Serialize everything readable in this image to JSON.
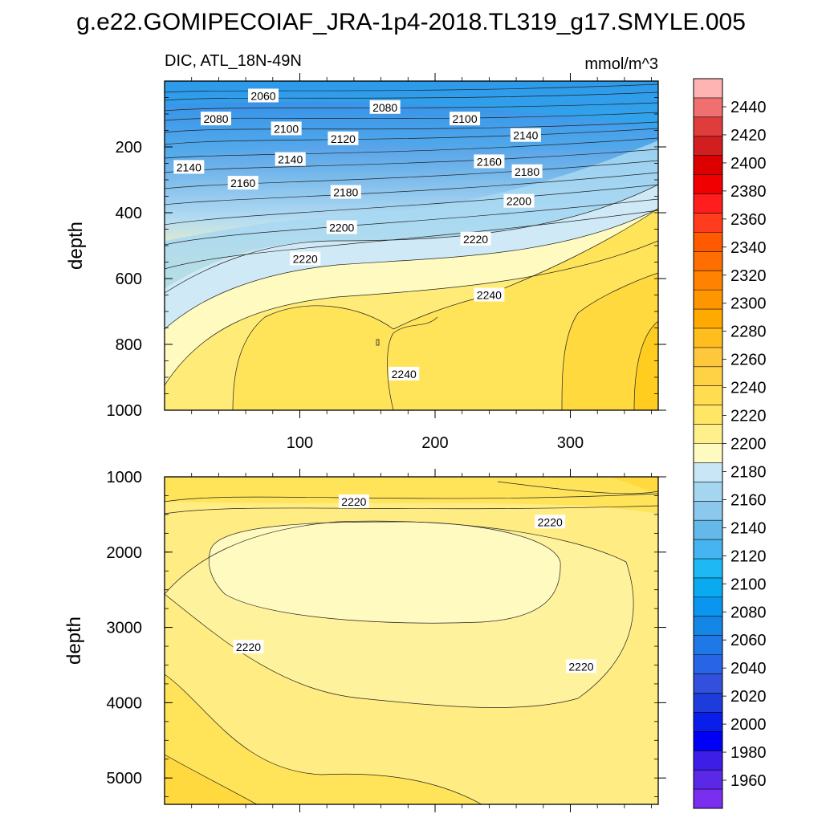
{
  "figure": {
    "title": "g.e22.GOMIPECOIAF_JRA-1p4-2018.TL319_g17.SMYLE.005",
    "left_subtitle": "DIC, ATL_18N-49N",
    "right_subtitle": "mmol/m^3"
  },
  "chart_data": [
    {
      "type": "contour",
      "panel": "upper",
      "variable": "DIC",
      "region": "ATL_18N-49N",
      "units": "mmol/m^3",
      "ylabel": "depth",
      "xlabel": "",
      "xlim": [
        0,
        365
      ],
      "ylim": [
        0,
        1000
      ],
      "y_inverted": true,
      "x_ticks": [
        100,
        200,
        300
      ],
      "x_tick_labels": [
        "100",
        "200",
        "300"
      ],
      "y_ticks": [
        200,
        400,
        600,
        800,
        1000
      ],
      "y_tick_labels": [
        "200",
        "400",
        "600",
        "800",
        "1000"
      ],
      "contour_labels": [
        {
          "text": "2060",
          "x": 73,
          "y": 45
        },
        {
          "text": "2080",
          "x": 38,
          "y": 115
        },
        {
          "text": "2080",
          "x": 163,
          "y": 80
        },
        {
          "text": "2100",
          "x": 90,
          "y": 145
        },
        {
          "text": "2100",
          "x": 222,
          "y": 115
        },
        {
          "text": "2120",
          "x": 132,
          "y": 175
        },
        {
          "text": "2140",
          "x": 18,
          "y": 262
        },
        {
          "text": "2140",
          "x": 93,
          "y": 238
        },
        {
          "text": "2140",
          "x": 267,
          "y": 165
        },
        {
          "text": "2160",
          "x": 58,
          "y": 310
        },
        {
          "text": "2160",
          "x": 240,
          "y": 245
        },
        {
          "text": "2180",
          "x": 134,
          "y": 338
        },
        {
          "text": "2180",
          "x": 268,
          "y": 275
        },
        {
          "text": "2200",
          "x": 131,
          "y": 445
        },
        {
          "text": "2200",
          "x": 262,
          "y": 365
        },
        {
          "text": "2220",
          "x": 104,
          "y": 540
        },
        {
          "text": "2220",
          "x": 230,
          "y": 480
        },
        {
          "text": "2240",
          "x": 240,
          "y": 650
        },
        {
          "text": "2240",
          "x": 177,
          "y": 890
        }
      ]
    },
    {
      "type": "contour",
      "panel": "lower",
      "variable": "DIC",
      "ylabel": "depth",
      "xlim": [
        0,
        365
      ],
      "ylim": [
        1000,
        5350
      ],
      "y_inverted": true,
      "y_ticks": [
        1000,
        2000,
        3000,
        4000,
        5000
      ],
      "y_tick_labels": [
        "1000",
        "2000",
        "3000",
        "4000",
        "5000"
      ],
      "contour_labels": [
        {
          "text": "2220",
          "x": 140,
          "y": 1330
        },
        {
          "text": "2220",
          "x": 285,
          "y": 1600
        },
        {
          "text": "2220",
          "x": 62,
          "y": 3260
        },
        {
          "text": "2220",
          "x": 308,
          "y": 3520
        }
      ]
    }
  ],
  "colorbar": {
    "labels": [
      "2440",
      "2420",
      "2400",
      "2380",
      "2360",
      "2340",
      "2320",
      "2300",
      "2280",
      "2260",
      "2240",
      "2220",
      "2200",
      "2180",
      "2160",
      "2140",
      "2120",
      "2100",
      "2080",
      "2060",
      "2040",
      "2020",
      "2000",
      "1980",
      "1960"
    ],
    "colors": [
      "#ffb4b4",
      "#f07070",
      "#e03c3c",
      "#d21e1e",
      "#dc0000",
      "#f00000",
      "#ff1e1e",
      "#ff3c1e",
      "#ff5a00",
      "#ff6e00",
      "#ff8200",
      "#ff9600",
      "#ffaa00",
      "#ffbe1e",
      "#ffc83c",
      "#ffd246",
      "#ffdc50",
      "#ffe664",
      "#fff08c",
      "#fffac0",
      "#c8e6f5",
      "#a5d6f0",
      "#8cc8ec",
      "#64b9e9",
      "#46b4f0",
      "#1eb9f5",
      "#0aaaf0",
      "#0a96f0",
      "#1486e6",
      "#1e78e6",
      "#2864e6",
      "#3250dc",
      "#1e3cdc",
      "#0a1eeb",
      "#0000f5",
      "#3c1ee6",
      "#5a28e6",
      "#7a2ef0"
    ]
  }
}
